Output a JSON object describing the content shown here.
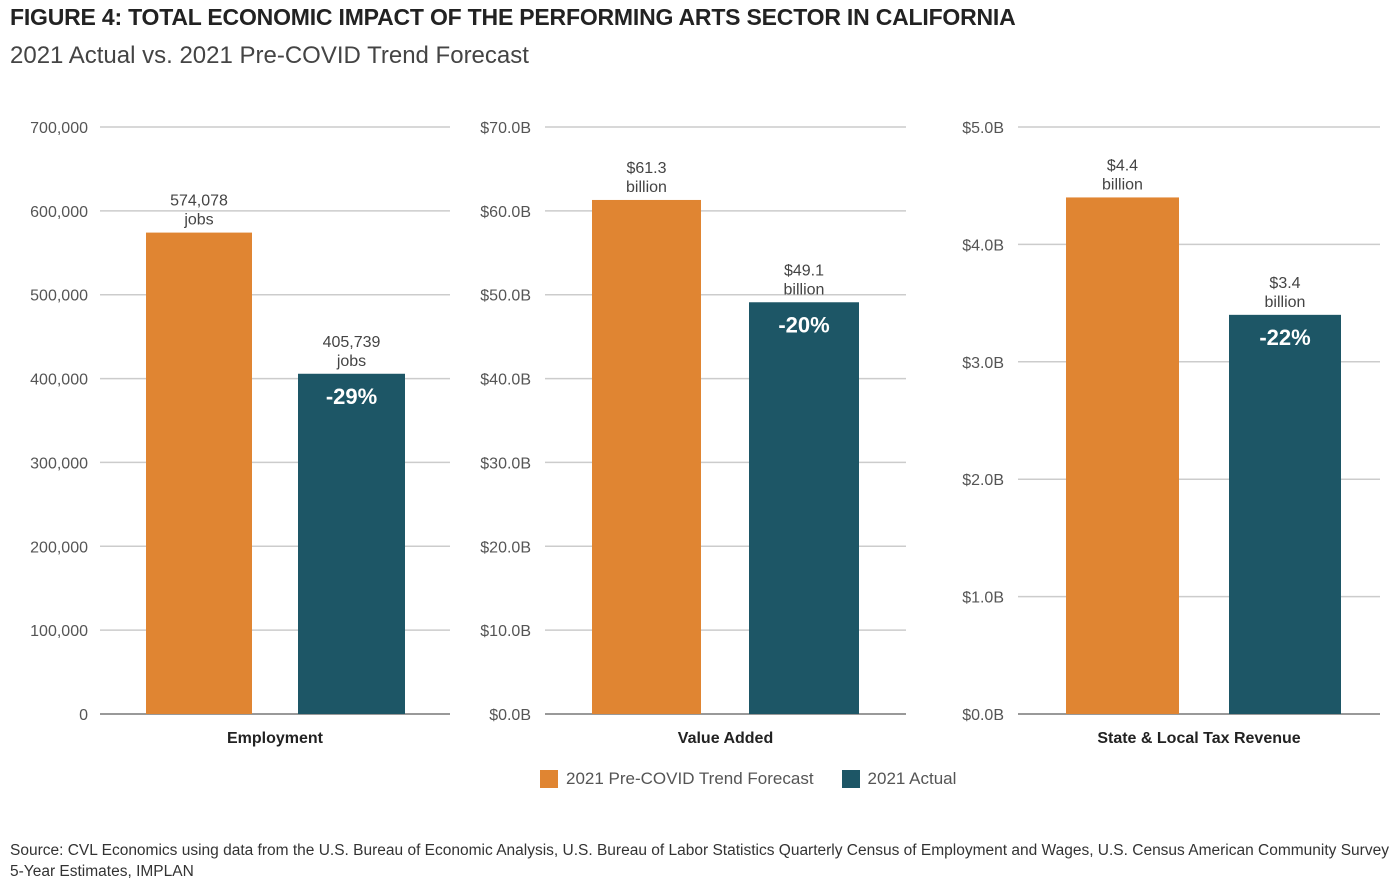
{
  "title": "FIGURE 4: TOTAL ECONOMIC IMPACT OF THE PERFORMING ARTS SECTOR IN CALIFORNIA",
  "subtitle": "2021 Actual vs. 2021 Pre-COVID Trend Forecast",
  "colors": {
    "forecast": "#E08532",
    "actual": "#1D5666",
    "grid": "#cccccc"
  },
  "chart_data": [
    {
      "type": "bar",
      "xlabel": "Employment",
      "ylim": [
        0,
        700000
      ],
      "yticks": [
        0,
        100000,
        200000,
        300000,
        400000,
        500000,
        600000,
        700000
      ],
      "ytick_labels": [
        "0",
        "100,000",
        "200,000",
        "300,000",
        "400,000",
        "500,000",
        "600,000",
        "700,000"
      ],
      "series": [
        {
          "name": "2021 Pre-COVID Trend Forecast",
          "value": 574078,
          "label": [
            "574,078",
            "jobs"
          ]
        },
        {
          "name": "2021 Actual",
          "value": 405739,
          "label": [
            "405,739",
            "jobs"
          ],
          "pct": "-29%"
        }
      ]
    },
    {
      "type": "bar",
      "xlabel": "Value Added",
      "ylim": [
        0,
        70
      ],
      "yticks": [
        0,
        10,
        20,
        30,
        40,
        50,
        60,
        70
      ],
      "ytick_labels": [
        "$0.0B",
        "$10.0B",
        "$20.0B",
        "$30.0B",
        "$40.0B",
        "$50.0B",
        "$60.0B",
        "$70.0B"
      ],
      "series": [
        {
          "name": "2021 Pre-COVID Trend Forecast",
          "value": 61.3,
          "label": [
            "$61.3",
            "billion"
          ]
        },
        {
          "name": "2021 Actual",
          "value": 49.1,
          "label": [
            "$49.1",
            "billion"
          ],
          "pct": "-20%"
        }
      ]
    },
    {
      "type": "bar",
      "xlabel": "State & Local Tax Revenue",
      "ylim": [
        0,
        5
      ],
      "yticks": [
        0,
        1,
        2,
        3,
        4,
        5
      ],
      "ytick_labels": [
        "$0.0B",
        "$1.0B",
        "$2.0B",
        "$3.0B",
        "$4.0B",
        "$5.0B"
      ],
      "series": [
        {
          "name": "2021 Pre-COVID Trend Forecast",
          "value": 4.4,
          "label": [
            "$4.4",
            "billion"
          ]
        },
        {
          "name": "2021 Actual",
          "value": 3.4,
          "label": [
            "$3.4",
            "billion"
          ],
          "pct": "-22%"
        }
      ]
    }
  ],
  "legend": [
    "2021 Pre-COVID Trend Forecast",
    "2021 Actual"
  ],
  "source": "Source: CVL Economics using data from the U.S. Bureau of Economic Analysis, U.S. Bureau of Labor Statistics Quarterly Census of Employment and Wages, U.S. Census American Community Survey 5-Year Estimates, IMPLAN"
}
